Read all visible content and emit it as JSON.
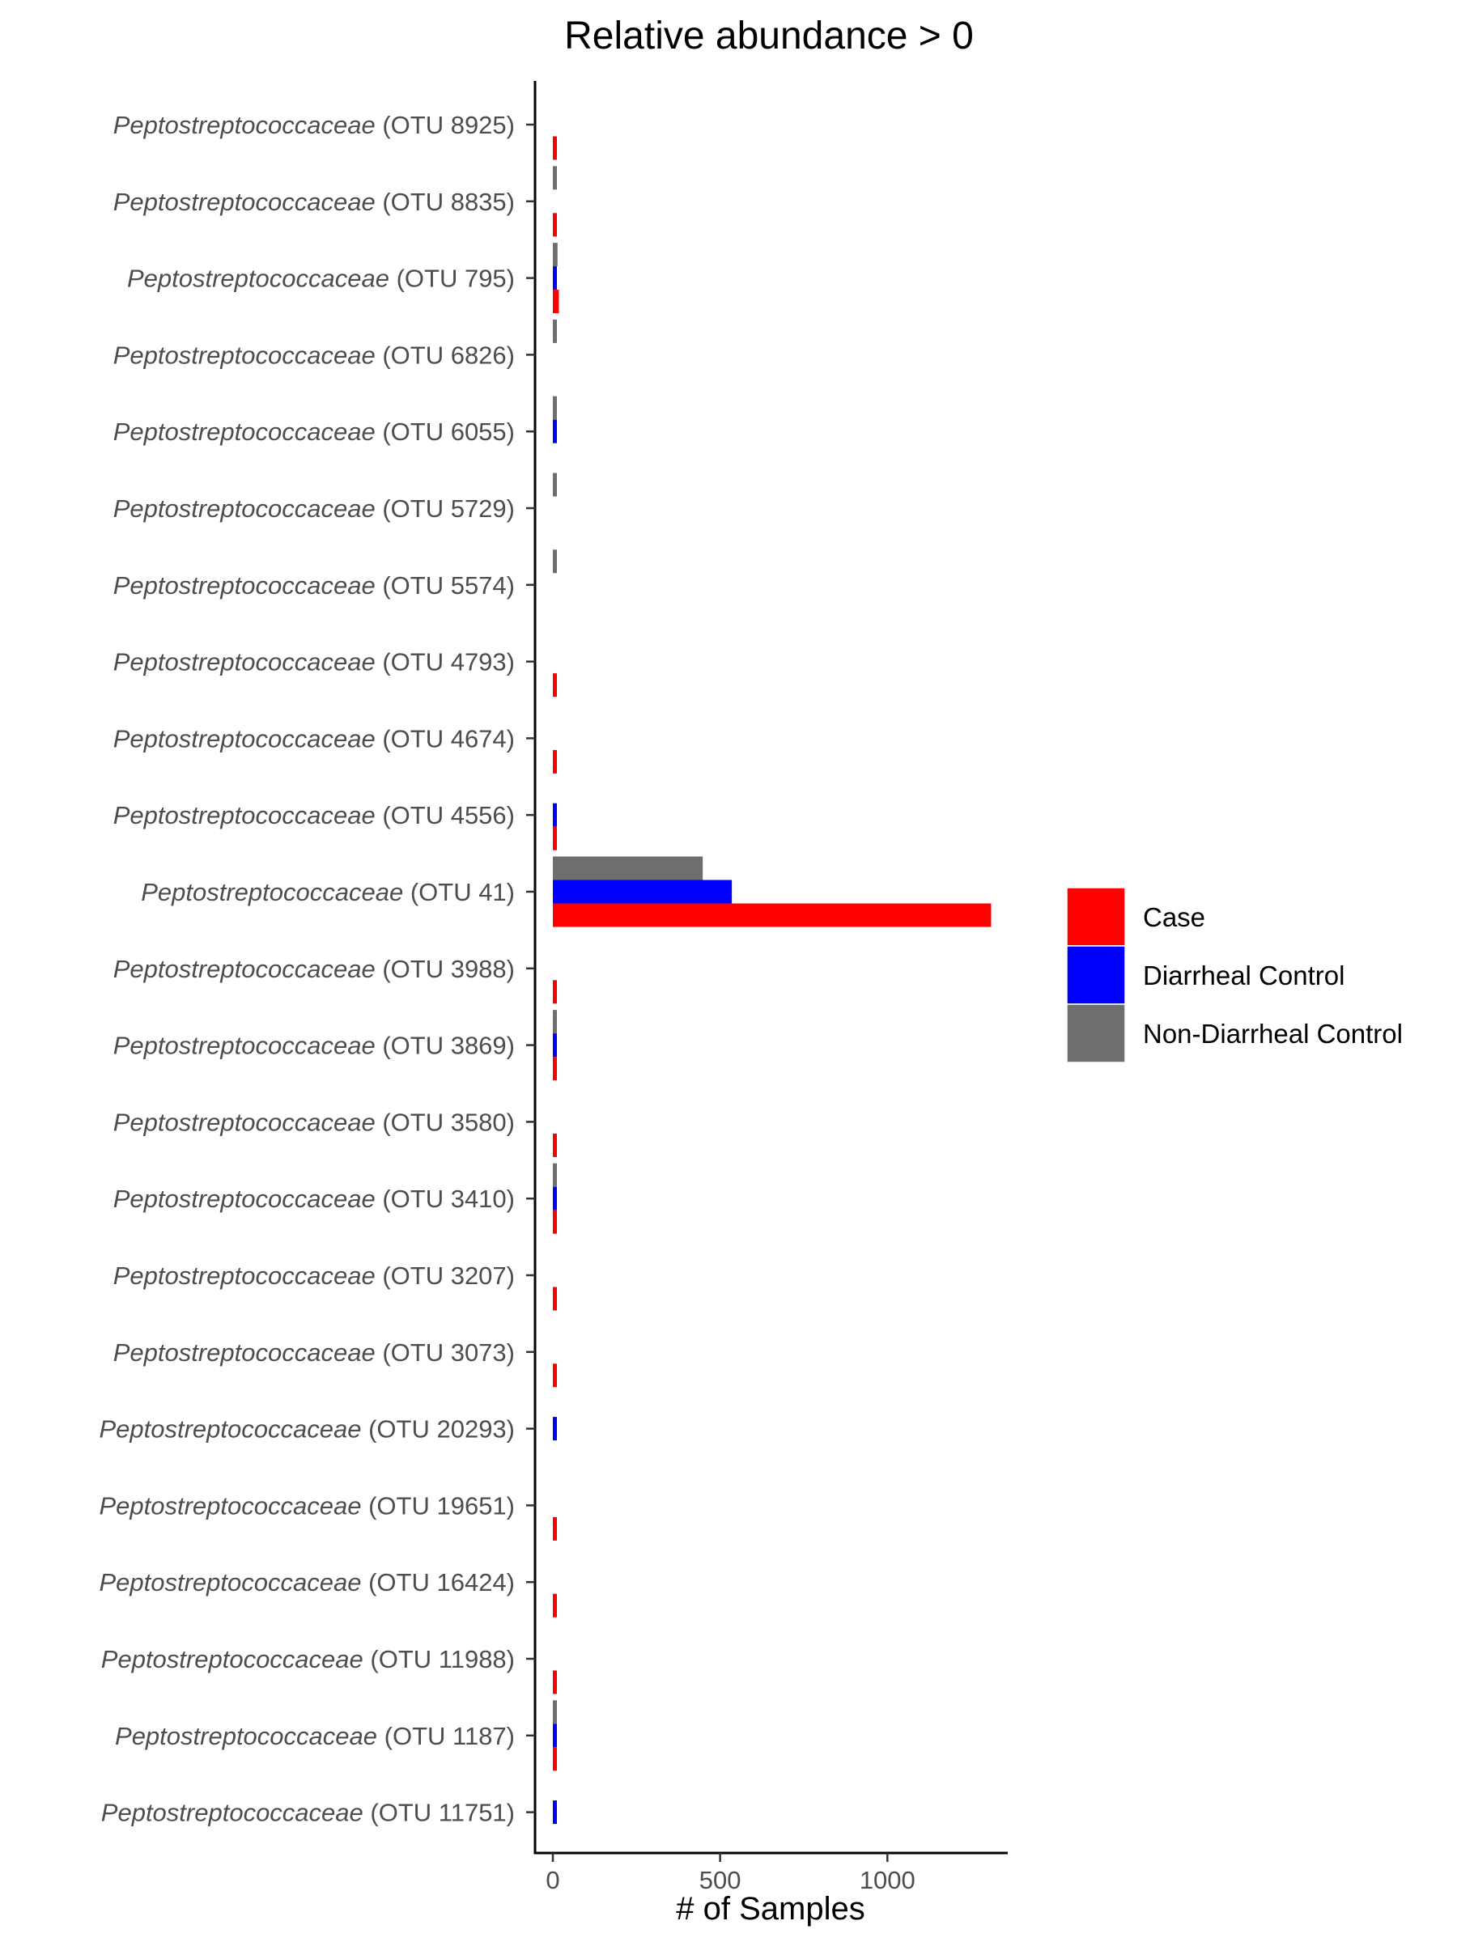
{
  "chart_data": {
    "type": "bar",
    "orientation": "horizontal",
    "title": "Relative abundance > 0",
    "xlabel": "# of Samples",
    "ylabel": "",
    "xlim": [
      0,
      1360
    ],
    "x_ticks": [
      0,
      500,
      1000
    ],
    "grid": false,
    "legend_position": "right",
    "categories": [
      {
        "genus": "Peptostreptococcaceae",
        "suffix": " (OTU 8925)"
      },
      {
        "genus": "Peptostreptococcaceae",
        "suffix": " (OTU 8835)"
      },
      {
        "genus": "Peptostreptococcaceae",
        "suffix": " (OTU 795)"
      },
      {
        "genus": "Peptostreptococcaceae",
        "suffix": " (OTU 6826)"
      },
      {
        "genus": "Peptostreptococcaceae",
        "suffix": " (OTU 6055)"
      },
      {
        "genus": "Peptostreptococcaceae",
        "suffix": " (OTU 5729)"
      },
      {
        "genus": "Peptostreptococcaceae",
        "suffix": " (OTU 5574)"
      },
      {
        "genus": "Peptostreptococcaceae",
        "suffix": " (OTU 4793)"
      },
      {
        "genus": "Peptostreptococcaceae",
        "suffix": " (OTU 4674)"
      },
      {
        "genus": "Peptostreptococcaceae",
        "suffix": " (OTU 4556)"
      },
      {
        "genus": "Peptostreptococcaceae",
        "suffix": " (OTU 41)"
      },
      {
        "genus": "Peptostreptococcaceae",
        "suffix": " (OTU 3988)"
      },
      {
        "genus": "Peptostreptococcaceae",
        "suffix": " (OTU 3869)"
      },
      {
        "genus": "Peptostreptococcaceae",
        "suffix": " (OTU 3580)"
      },
      {
        "genus": "Peptostreptococcaceae",
        "suffix": " (OTU 3410)"
      },
      {
        "genus": "Peptostreptococcaceae",
        "suffix": " (OTU 3207)"
      },
      {
        "genus": "Peptostreptococcaceae",
        "suffix": " (OTU 3073)"
      },
      {
        "genus": "Peptostreptococcaceae",
        "suffix": " (OTU 20293)"
      },
      {
        "genus": "Peptostreptococcaceae",
        "suffix": " (OTU 19651)"
      },
      {
        "genus": "Peptostreptococcaceae",
        "suffix": " (OTU 16424)"
      },
      {
        "genus": "Peptostreptococcaceae",
        "suffix": " (OTU 11988)"
      },
      {
        "genus": "Peptostreptococcaceae",
        "suffix": " (OTU 1187)"
      },
      {
        "genus": "Peptostreptococcaceae",
        "suffix": " (OTU 11751)"
      }
    ],
    "series": [
      {
        "name": "Case",
        "color": "#ff0000",
        "values": [
          6,
          5,
          18,
          0,
          0,
          0,
          0,
          6,
          6,
          3,
          1310,
          4,
          3,
          8,
          4,
          8,
          8,
          0,
          5,
          5,
          5,
          5,
          0
        ]
      },
      {
        "name": "Diarrheal Control",
        "color": "#0000ff",
        "values": [
          0,
          0,
          12,
          0,
          5,
          0,
          0,
          0,
          0,
          5,
          535,
          0,
          6,
          0,
          6,
          0,
          0,
          5,
          0,
          0,
          0,
          7,
          6
        ]
      },
      {
        "name": "Non-Diarrheal Control",
        "color": "#6e6e6e",
        "values": [
          0,
          5,
          14,
          6,
          5,
          5,
          5,
          0,
          0,
          0,
          448,
          0,
          5,
          0,
          4,
          0,
          0,
          0,
          0,
          0,
          0,
          6,
          0
        ]
      }
    ]
  }
}
